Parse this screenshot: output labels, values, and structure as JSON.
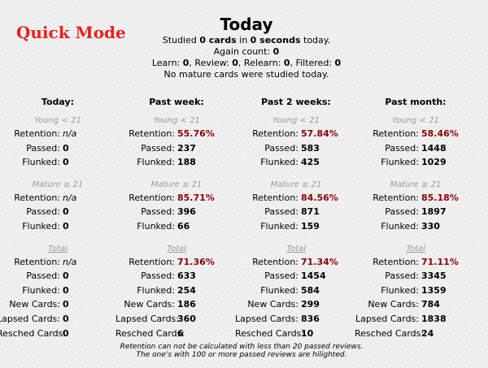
{
  "quick_mode_label": "Quick Mode",
  "header": {
    "title": "Today",
    "studied_prefix": "Studied ",
    "studied_cards": "0 cards",
    "studied_mid": " in ",
    "studied_seconds": "0 seconds",
    "studied_suffix": " today.",
    "again_label": "Again count: ",
    "again_value": "0",
    "learn_label": "Learn: ",
    "learn_value": "0",
    "review_label": ", Review: ",
    "review_value": "0",
    "relearn_label": ", Relearn: ",
    "relearn_value": "0",
    "filtered_label": ", Filtered: ",
    "filtered_value": "0",
    "mature_note": "No mature cards were studied today."
  },
  "labels": {
    "young": "Young < 21",
    "mature": "Mature ≥ 21",
    "total": "Total",
    "retention": "Retention:",
    "passed": "Passed:",
    "flunked": "Flunked:",
    "new_cards": "New Cards:",
    "lapsed_cards": "Lapsed Cards:",
    "resched_cards": "Resched Cards:"
  },
  "columns": [
    {
      "header": "Today:",
      "young": {
        "retention": "n/a",
        "passed": "0",
        "flunked": "0"
      },
      "mature": {
        "retention": "n/a",
        "passed": "0",
        "flunked": "0"
      },
      "total": {
        "retention": "n/a",
        "passed": "0",
        "flunked": "0",
        "new_cards": "0",
        "lapsed_cards": "0",
        "resched_cards": "0"
      }
    },
    {
      "header": "Past week:",
      "young": {
        "retention": "55.76%",
        "passed": "237",
        "flunked": "188"
      },
      "mature": {
        "retention": "85.71%",
        "passed": "396",
        "flunked": "66"
      },
      "total": {
        "retention": "71.36%",
        "passed": "633",
        "flunked": "254",
        "new_cards": "186",
        "lapsed_cards": "360",
        "resched_cards": "6"
      }
    },
    {
      "header": "Past 2 weeks:",
      "young": {
        "retention": "57.84%",
        "passed": "583",
        "flunked": "425"
      },
      "mature": {
        "retention": "84.56%",
        "passed": "871",
        "flunked": "159"
      },
      "total": {
        "retention": "71.34%",
        "passed": "1454",
        "flunked": "584",
        "new_cards": "299",
        "lapsed_cards": "836",
        "resched_cards": "10"
      }
    },
    {
      "header": "Past month:",
      "young": {
        "retention": "58.46%",
        "passed": "1448",
        "flunked": "1029"
      },
      "mature": {
        "retention": "85.18%",
        "passed": "1897",
        "flunked": "330"
      },
      "total": {
        "retention": "71.11%",
        "passed": "3345",
        "flunked": "1359",
        "new_cards": "784",
        "lapsed_cards": "1838",
        "resched_cards": "24"
      }
    }
  ],
  "footer": {
    "line1": "Retention can not be calculated with less than 20 passed reviews.",
    "line2": "The one's with 100 or more passed reviews are hilighted."
  },
  "colors": {
    "quick_mode": "#e8201f",
    "retention_value": "#8b0000",
    "section_label": "#999999"
  }
}
